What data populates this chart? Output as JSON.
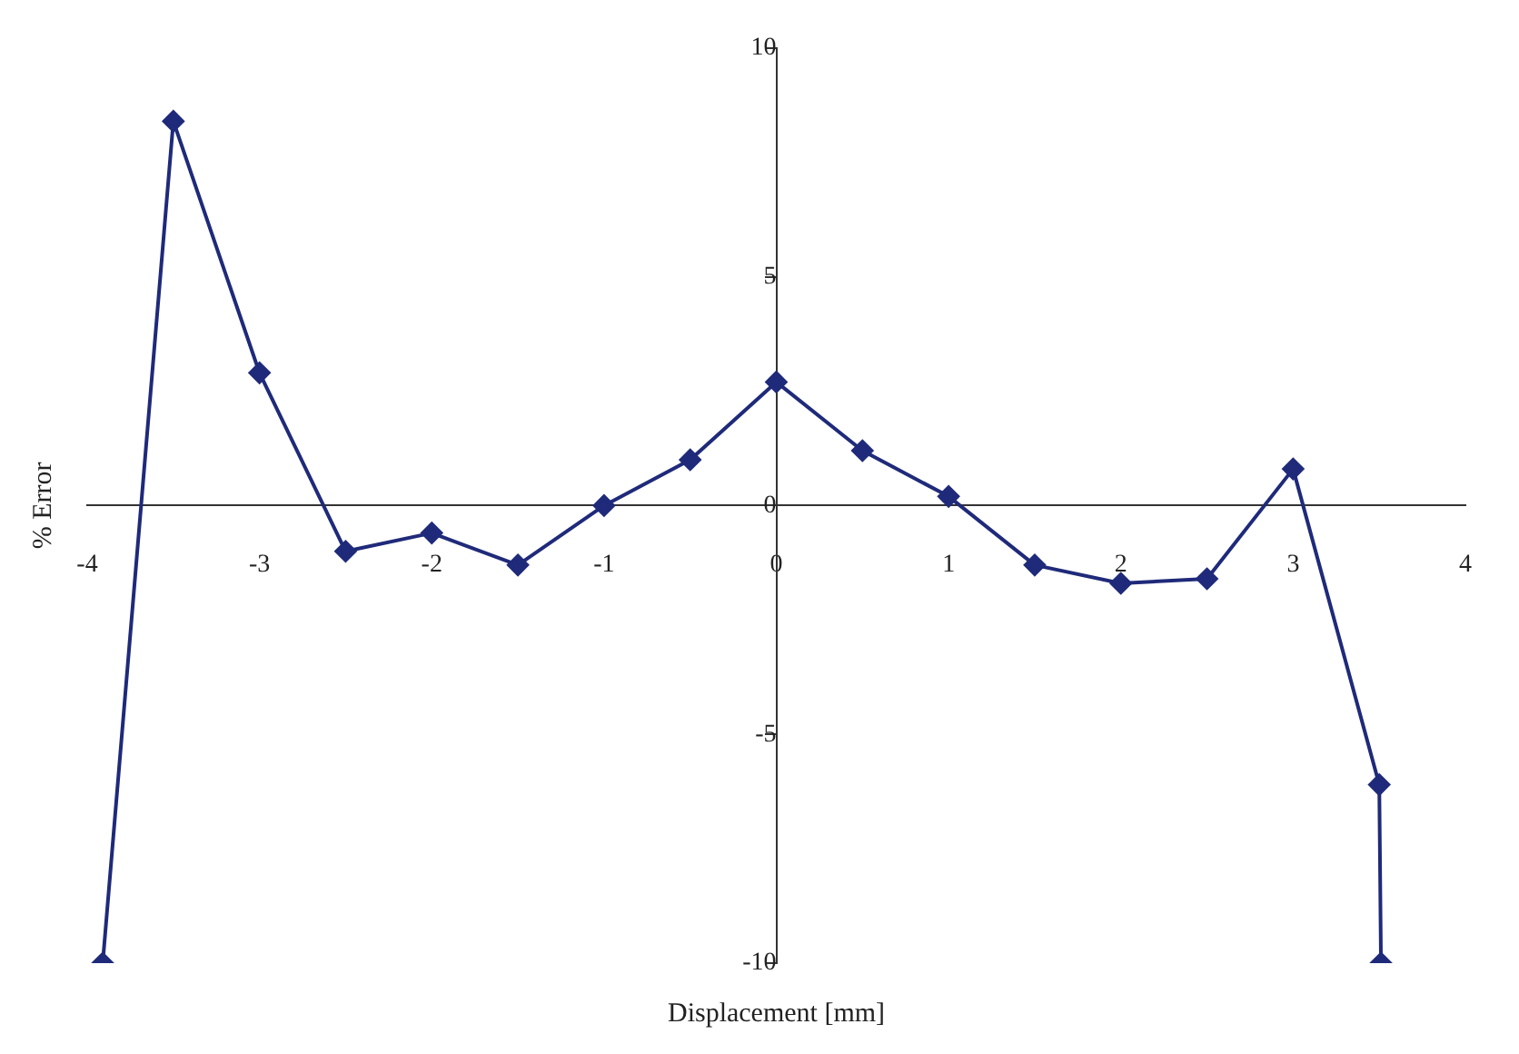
{
  "chart_data": {
    "type": "line",
    "xlabel": "Displacement [mm]",
    "ylabel": "% Error",
    "x": [
      -3.91,
      -3.5,
      -3,
      -2.5,
      -2,
      -1.5,
      -1,
      -0.5,
      0,
      0.5,
      1,
      1.5,
      2,
      2.5,
      3,
      3.5,
      3.51
    ],
    "series": [
      {
        "color": "#1f2a7a",
        "values": [
          -10,
          8.4,
          2.9,
          -1.0,
          -0.6,
          -1.3,
          0,
          1.0,
          2.7,
          1.2,
          0.2,
          -1.3,
          -1.7,
          -1.6,
          0.8,
          -6.1,
          -10
        ]
      }
    ],
    "xlim": [
      -4,
      4
    ],
    "xticks": [
      -4,
      -3,
      -2,
      -1,
      0,
      1,
      2,
      3,
      4
    ],
    "ylim": [
      -10,
      10
    ],
    "yticks": [
      -10,
      -5,
      0,
      5,
      10
    ],
    "grid": false,
    "legend": false,
    "marker": "diamond",
    "line_style": "solid"
  }
}
